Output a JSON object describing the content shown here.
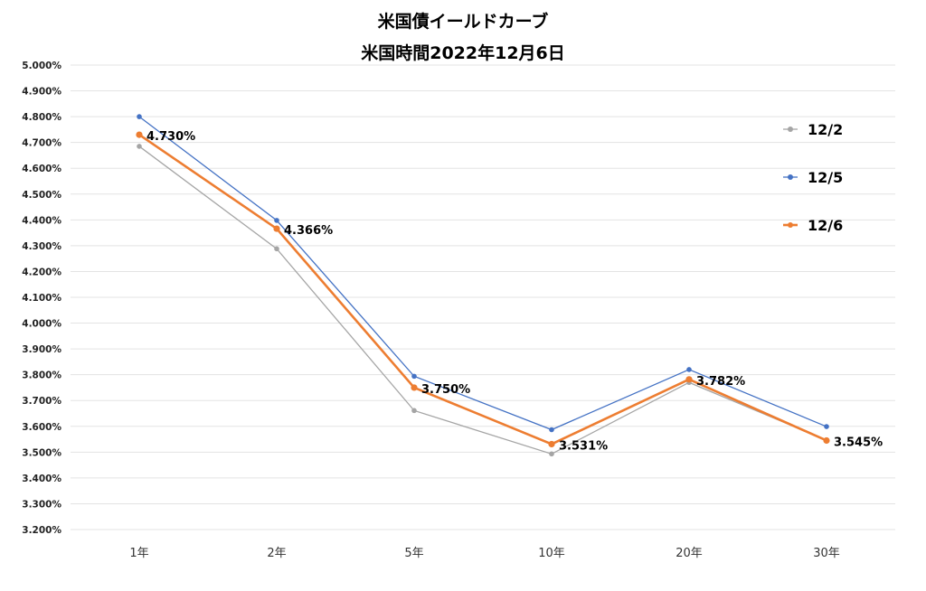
{
  "chart_data": {
    "type": "line",
    "title_line1": "米国債イールドカーブ",
    "title_line2": "米国時間2022年12月6日",
    "categories": [
      "1年",
      "2年",
      "5年",
      "10年",
      "20年",
      "30年"
    ],
    "ylim": [
      3.2,
      5.0
    ],
    "ytick_step": 0.1,
    "ytick_labels": [
      "5.000%",
      "4.900%",
      "4.800%",
      "4.700%",
      "4.600%",
      "4.500%",
      "4.400%",
      "4.300%",
      "4.200%",
      "4.100%",
      "4.000%",
      "3.900%",
      "3.800%",
      "3.700%",
      "3.600%",
      "3.500%",
      "3.400%",
      "3.300%",
      "3.200%"
    ],
    "grid": true,
    "legend_position": "right",
    "series": [
      {
        "name": "12/2",
        "color": "#a5a5a5",
        "values": [
          4.685,
          4.288,
          3.661,
          3.493,
          3.77,
          3.546
        ],
        "labels": []
      },
      {
        "name": "12/5",
        "color": "#4472c4",
        "values": [
          4.8,
          4.398,
          3.794,
          3.587,
          3.82,
          3.599
        ],
        "labels": []
      },
      {
        "name": "12/6",
        "color": "#ed7d31",
        "values": [
          4.73,
          4.366,
          3.75,
          3.531,
          3.782,
          3.545
        ],
        "labels": [
          "4.730%",
          "4.366%",
          "3.750%",
          "3.531%",
          "3.782%",
          "3.545%"
        ]
      }
    ]
  }
}
